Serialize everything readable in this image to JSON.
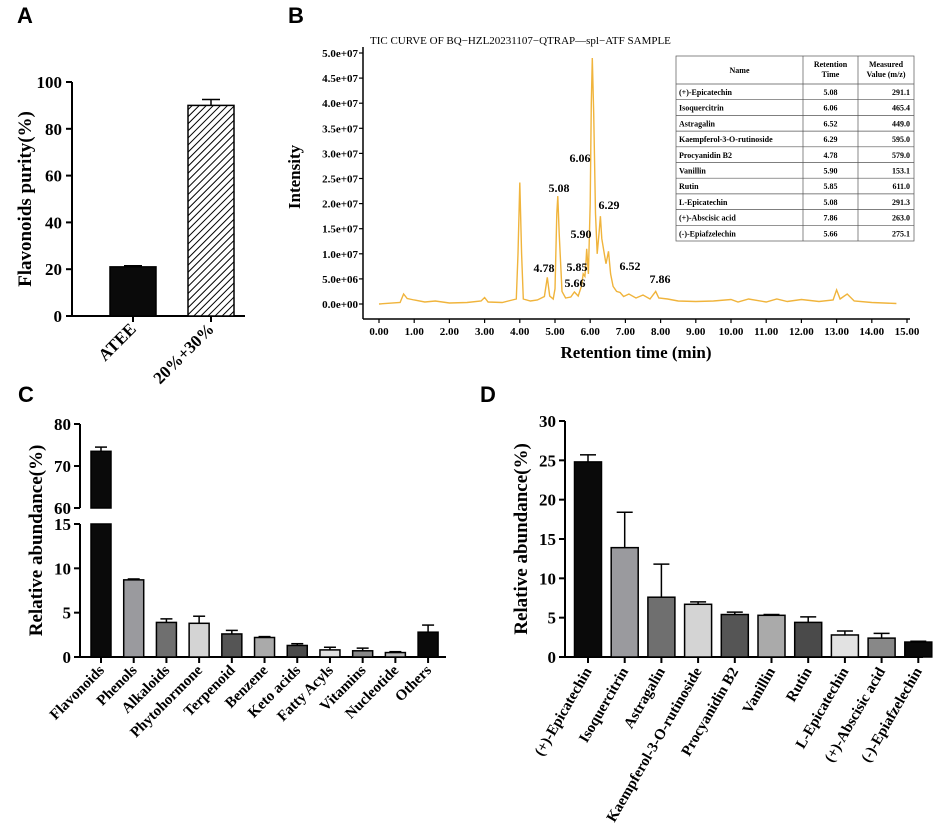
{
  "panels": {
    "a": "A",
    "b": "B",
    "c": "C",
    "d": "D"
  },
  "chart_data": [
    {
      "id": "A",
      "type": "bar",
      "categories": [
        "ATEE",
        "20%+30%"
      ],
      "values": [
        21,
        90
      ],
      "errors": [
        0.5,
        2.5
      ],
      "patterns": [
        "solid",
        "hatch"
      ],
      "ylabel": "Flavonoids purity(%)",
      "ylim": [
        0,
        100
      ],
      "yticks": [
        0,
        20,
        40,
        60,
        80,
        100
      ]
    },
    {
      "id": "B",
      "type": "line",
      "title": "TIC CURVE OF BQ−HZL20231107−QTRAP—spl−ATF SAMPLE",
      "xlabel": "Retention time (min)",
      "ylabel": "Intensity",
      "xlim": [
        0,
        15
      ],
      "ylim": [
        0,
        50000000
      ],
      "xticks": [
        "0.00",
        "1.00",
        "2.00",
        "3.00",
        "4.00",
        "5.00",
        "6.00",
        "7.00",
        "8.00",
        "9.00",
        "10.00",
        "11.00",
        "12.00",
        "13.00",
        "14.00",
        "15.00"
      ],
      "yticks": [
        "0.0e+00",
        "5.0e+06",
        "1.0e+07",
        "1.5e+07",
        "2.0e+07",
        "2.5e+07",
        "3.0e+07",
        "3.5e+07",
        "4.0e+07",
        "4.5e+07",
        "5.0e+07"
      ],
      "color": "#f0b43c",
      "points": [
        [
          0,
          0.0
        ],
        [
          0.6,
          0.3
        ],
        [
          0.7,
          2.0
        ],
        [
          0.8,
          1.1
        ],
        [
          1.0,
          0.8
        ],
        [
          1.3,
          0.4
        ],
        [
          1.6,
          0.6
        ],
        [
          2.0,
          0.2
        ],
        [
          2.5,
          0.3
        ],
        [
          2.9,
          0.6
        ],
        [
          3.0,
          1.3
        ],
        [
          3.1,
          0.4
        ],
        [
          3.5,
          0.3
        ],
        [
          3.9,
          1.0
        ],
        [
          3.95,
          10.0
        ],
        [
          4.0,
          24.2
        ],
        [
          4.05,
          10.0
        ],
        [
          4.1,
          1.0
        ],
        [
          4.3,
          0.6
        ],
        [
          4.5,
          0.8
        ],
        [
          4.7,
          1.5
        ],
        [
          4.78,
          5.3
        ],
        [
          4.85,
          1.6
        ],
        [
          4.95,
          1.0
        ],
        [
          5.0,
          3.0
        ],
        [
          5.05,
          18.0
        ],
        [
          5.08,
          21.5
        ],
        [
          5.12,
          14.0
        ],
        [
          5.2,
          2.5
        ],
        [
          5.3,
          1.2
        ],
        [
          5.45,
          1.4
        ],
        [
          5.55,
          2.4
        ],
        [
          5.66,
          1.6
        ],
        [
          5.75,
          3.5
        ],
        [
          5.8,
          6.0
        ],
        [
          5.85,
          5.5
        ],
        [
          5.88,
          8.5
        ],
        [
          5.9,
          11.0
        ],
        [
          5.95,
          6.0
        ],
        [
          6.0,
          20.0
        ],
        [
          6.03,
          40.0
        ],
        [
          6.06,
          49.0
        ],
        [
          6.1,
          38.0
        ],
        [
          6.15,
          18.0
        ],
        [
          6.2,
          10.0
        ],
        [
          6.25,
          14.0
        ],
        [
          6.29,
          17.5
        ],
        [
          6.33,
          13.0
        ],
        [
          6.4,
          10.0
        ],
        [
          6.45,
          8.0
        ],
        [
          6.52,
          10.5
        ],
        [
          6.58,
          6.0
        ],
        [
          6.65,
          3.5
        ],
        [
          6.75,
          2.5
        ],
        [
          6.85,
          2.3
        ],
        [
          6.95,
          1.5
        ],
        [
          7.1,
          2.0
        ],
        [
          7.3,
          1.2
        ],
        [
          7.5,
          1.8
        ],
        [
          7.7,
          1.0
        ],
        [
          7.86,
          2.5
        ],
        [
          7.95,
          1.2
        ],
        [
          8.2,
          1.0
        ],
        [
          8.5,
          0.6
        ],
        [
          9.0,
          0.5
        ],
        [
          9.5,
          0.6
        ],
        [
          10.0,
          0.9
        ],
        [
          10.2,
          0.4
        ],
        [
          10.5,
          1.0
        ],
        [
          11.0,
          0.4
        ],
        [
          11.3,
          1.0
        ],
        [
          11.6,
          0.5
        ],
        [
          12.0,
          0.9
        ],
        [
          12.5,
          0.5
        ],
        [
          12.9,
          0.8
        ],
        [
          13.0,
          2.8
        ],
        [
          13.1,
          1.0
        ],
        [
          13.2,
          1.5
        ],
        [
          13.3,
          2.0
        ],
        [
          13.5,
          0.6
        ],
        [
          14.0,
          0.3
        ],
        [
          14.7,
          0.1
        ]
      ],
      "peak_labels": [
        {
          "x": 4.78,
          "label": "4.78"
        },
        {
          "x": 5.08,
          "label": "5.08"
        },
        {
          "x": 5.66,
          "label": "5.66"
        },
        {
          "x": 5.85,
          "label": "5.85"
        },
        {
          "x": 5.9,
          "label": "5.90"
        },
        {
          "x": 6.06,
          "label": "6.06"
        },
        {
          "x": 6.29,
          "label": "6.29"
        },
        {
          "x": 6.52,
          "label": "6.52"
        },
        {
          "x": 7.86,
          "label": "7.86"
        }
      ],
      "table": {
        "headers": [
          "Name",
          "Retention Time",
          "Measured Value (m/z)"
        ],
        "rows": [
          [
            "(+)-Epicatechin",
            "5.08",
            "291.1"
          ],
          [
            "Isoquercitrin",
            "6.06",
            "465.4"
          ],
          [
            "Astragalin",
            "6.52",
            "449.0"
          ],
          [
            "Kaempferol-3-O-rutinoside",
            "6.29",
            "595.0"
          ],
          [
            "Procyanidin B2",
            "4.78",
            "579.0"
          ],
          [
            "Vanillin",
            "5.90",
            "153.1"
          ],
          [
            "Rutin",
            "5.85",
            "611.0"
          ],
          [
            "L-Epicatechin",
            "5.08",
            "291.3"
          ],
          [
            "(+)-Abscisic acid",
            "7.86",
            "263.0"
          ],
          [
            "(-)-Epiafzelechin",
            "5.66",
            "275.1"
          ]
        ]
      }
    },
    {
      "id": "C",
      "type": "bar",
      "categories": [
        "Flavonoids",
        "Phenols",
        "Alkaloids",
        "Phytohormone",
        "Terpenoid",
        "Benzene",
        "Keto acids",
        "Fatty Acyls",
        "Vitamins",
        "Nucleotide",
        "Others"
      ],
      "values": [
        73.5,
        8.7,
        3.9,
        3.8,
        2.6,
        2.2,
        1.3,
        0.8,
        0.7,
        0.5,
        2.8
      ],
      "errors": [
        1.0,
        0.1,
        0.4,
        0.8,
        0.4,
        0.1,
        0.2,
        0.3,
        0.3,
        0.1,
        0.8
      ],
      "colors": [
        "#0a0a0a",
        "#9a9a9e",
        "#6f6f6f",
        "#d4d4d4",
        "#555555",
        "#aaaaaa",
        "#4a4a4a",
        "#e2e2e2",
        "#888888",
        "#bbbbbb",
        "#0a0a0a"
      ],
      "ylabel": "Relative abundance(%)",
      "ylim": [
        0,
        80
      ],
      "axis_break": [
        15,
        60
      ],
      "yticks": [
        0,
        5,
        10,
        15,
        60,
        70,
        80
      ]
    },
    {
      "id": "D",
      "type": "bar",
      "categories": [
        "(+)-Epicatechin",
        "Isoquercitrin",
        "Astragalin",
        "Kaempferol-3-O-rutinoside",
        "Procyanidin B2",
        "Vanillin",
        "Rutin",
        "L-Epicatechin",
        "(+)-Abscisic acid",
        "(-)-Epiafzelechin"
      ],
      "values": [
        24.8,
        13.9,
        7.6,
        6.7,
        5.4,
        5.3,
        4.4,
        2.8,
        2.4,
        1.9
      ],
      "errors": [
        0.9,
        4.5,
        4.2,
        0.3,
        0.3,
        0.1,
        0.7,
        0.5,
        0.6,
        0.1
      ],
      "colors": [
        "#0a0a0a",
        "#9a9a9e",
        "#6f6f6f",
        "#d4d4d4",
        "#555555",
        "#aaaaaa",
        "#4a4a4a",
        "#e2e2e2",
        "#888888",
        "#0a0a0a"
      ],
      "ylabel": "Relative abundance(%)",
      "ylim": [
        0,
        30
      ],
      "yticks": [
        0,
        5,
        10,
        15,
        20,
        25,
        30
      ]
    }
  ]
}
